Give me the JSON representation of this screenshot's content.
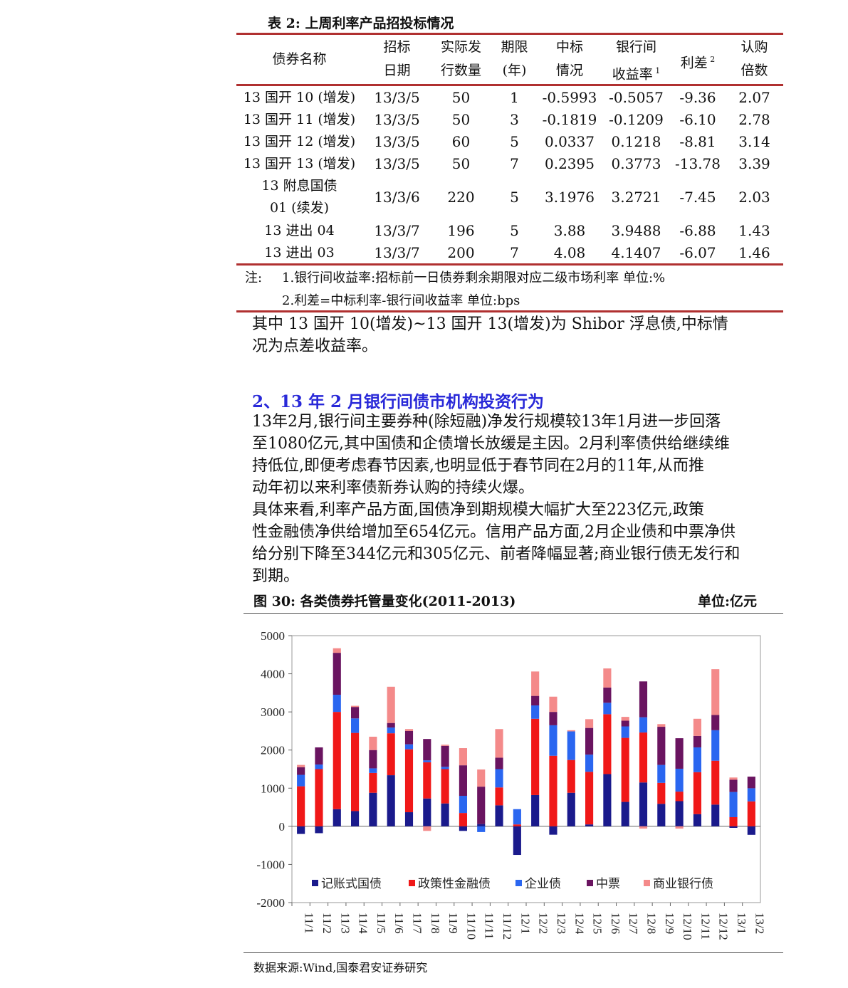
{
  "table": {
    "title": "表 2:  上周利率产品招投标情况",
    "headers": [
      [
        "债券名称"
      ],
      [
        "招标",
        "日期"
      ],
      [
        "实际发",
        "行数量"
      ],
      [
        "期限",
        "(年)"
      ],
      [
        "中标",
        "情况"
      ],
      [
        "银行间",
        "收益率"
      ],
      [
        "利差"
      ],
      [
        "认购",
        "倍数"
      ]
    ],
    "header_sup": {
      "yield": "1",
      "spread": "2"
    },
    "rows": [
      [
        "13 国开 10 (增发)",
        "13/3/5",
        "50",
        "1",
        "-0.5993",
        "-0.5057",
        "-9.36",
        "2.07"
      ],
      [
        "13 国开 11 (增发)",
        "13/3/5",
        "50",
        "3",
        "-0.1819",
        "-0.1209",
        "-6.10",
        "2.78"
      ],
      [
        "13 国开 12 (增发)",
        "13/3/5",
        "60",
        "5",
        "0.0337",
        "0.1218",
        "-8.81",
        "3.14"
      ],
      [
        "13 国开 13 (增发)",
        "13/3/5",
        "50",
        "7",
        "0.2395",
        "0.3773",
        "-13.78",
        "3.39"
      ],
      [
        "13 附息国债 01 (续发)",
        "13/3/6",
        "220",
        "5",
        "3.1976",
        "3.2721",
        "-7.45",
        "2.03"
      ],
      [
        "13 进出 04",
        "13/3/7",
        "196",
        "5",
        "3.88",
        "3.9488",
        "-6.88",
        "1.43"
      ],
      [
        "13 进出 03",
        "13/3/7",
        "200",
        "7",
        "4.08",
        "4.1407",
        "-6.07",
        "1.46"
      ]
    ],
    "row5_name_lines": [
      "13 附息国债",
      "01 (续发)"
    ],
    "notes": {
      "prefix": "注:",
      "line1": "1.银行间收益率:招标前一日债券剩余期限对应二级市场利率  单位:%",
      "line2": "2.利差=中标利率-银行间收益率  单位:bps"
    }
  },
  "para_intro": [
    "其中 13 国开 10(增发)~13 国开 13(增发)为 Shibor 浮息债,中标情",
    "况为点差收益率。"
  ],
  "section_title": "2、13 年 2 月银行间债市机构投资行为",
  "para_1": [
    "13年2月,银行间主要券种(除短融)净发行规模较13年1月进一步回落",
    "至1080亿元,其中国债和企债增长放缓是主因。2月利率债供给继续维",
    "持低位,即便考虑春节因素,也明显低于春节同在2月的11年,从而推",
    "动年初以来利率债新券认购的持续火爆。"
  ],
  "para_2": [
    "具体来看,利率产品方面,国债净到期规模大幅扩大至223亿元,政策",
    "性金融债净供给增加至654亿元。信用产品方面,2月企业债和中票净供",
    "给分别下降至344亿元和305亿元、前者降幅显著;商业银行债无发行和",
    "到期。"
  ],
  "figure": {
    "title": "图  30:  各类债券托管量变化(2011-2013)",
    "unit": "单位:亿元",
    "source": "数据来源:Wind,国泰君安证券研究"
  },
  "chart_data": {
    "type": "bar",
    "stacked": true,
    "categories": [
      "11/1",
      "11/2",
      "11/3",
      "11/4",
      "11/5",
      "11/6",
      "11/7",
      "11/8",
      "11/9",
      "11/10",
      "11/11",
      "11/12",
      "12/1",
      "12/2",
      "12/3",
      "12/4",
      "12/5",
      "12/6",
      "12/7",
      "12/8",
      "12/9",
      "12/10",
      "12/11",
      "12/12",
      "13/1",
      "13/2"
    ],
    "series": [
      {
        "name": "记账式国债",
        "color": "#1a1a8c",
        "values": [
          -200,
          -180,
          450,
          400,
          880,
          1340,
          370,
          730,
          600,
          -120,
          60,
          550,
          -750,
          820,
          -220,
          880,
          50,
          1370,
          640,
          1150,
          590,
          660,
          320,
          570,
          -40,
          -223
        ]
      },
      {
        "name": "政策性金融债",
        "color": "#f01818",
        "values": [
          1050,
          1500,
          2550,
          2050,
          520,
          1100,
          1650,
          950,
          900,
          350,
          0,
          470,
          50,
          2000,
          1850,
          860,
          1380,
          1570,
          1680,
          1310,
          550,
          250,
          1100,
          1150,
          240,
          654
        ]
      },
      {
        "name": "企业债",
        "color": "#2a66f0",
        "values": [
          300,
          120,
          450,
          380,
          120,
          150,
          130,
          50,
          60,
          450,
          -150,
          480,
          400,
          350,
          800,
          750,
          450,
          300,
          300,
          400,
          470,
          600,
          650,
          800,
          660,
          344
        ]
      },
      {
        "name": "中票",
        "color": "#6a1460",
        "values": [
          200,
          450,
          1100,
          300,
          480,
          120,
          350,
          560,
          550,
          800,
          980,
          300,
          0,
          250,
          350,
          0,
          700,
          400,
          150,
          940,
          1000,
          800,
          300,
          400,
          320,
          305
        ]
      },
      {
        "name": "商业银行债",
        "color": "#f48a8a",
        "values": [
          60,
          0,
          120,
          30,
          350,
          950,
          50,
          -120,
          30,
          450,
          450,
          750,
          0,
          640,
          400,
          30,
          230,
          500,
          100,
          -60,
          70,
          -60,
          450,
          1200,
          60,
          0
        ]
      }
    ],
    "ylim": [
      -2000,
      5000
    ],
    "yticks": [
      "5000",
      "4000",
      "3000",
      "2000",
      "1000",
      "0",
      "-1000",
      "-2000"
    ],
    "legend_position": "bottom-inside",
    "grid": false
  }
}
